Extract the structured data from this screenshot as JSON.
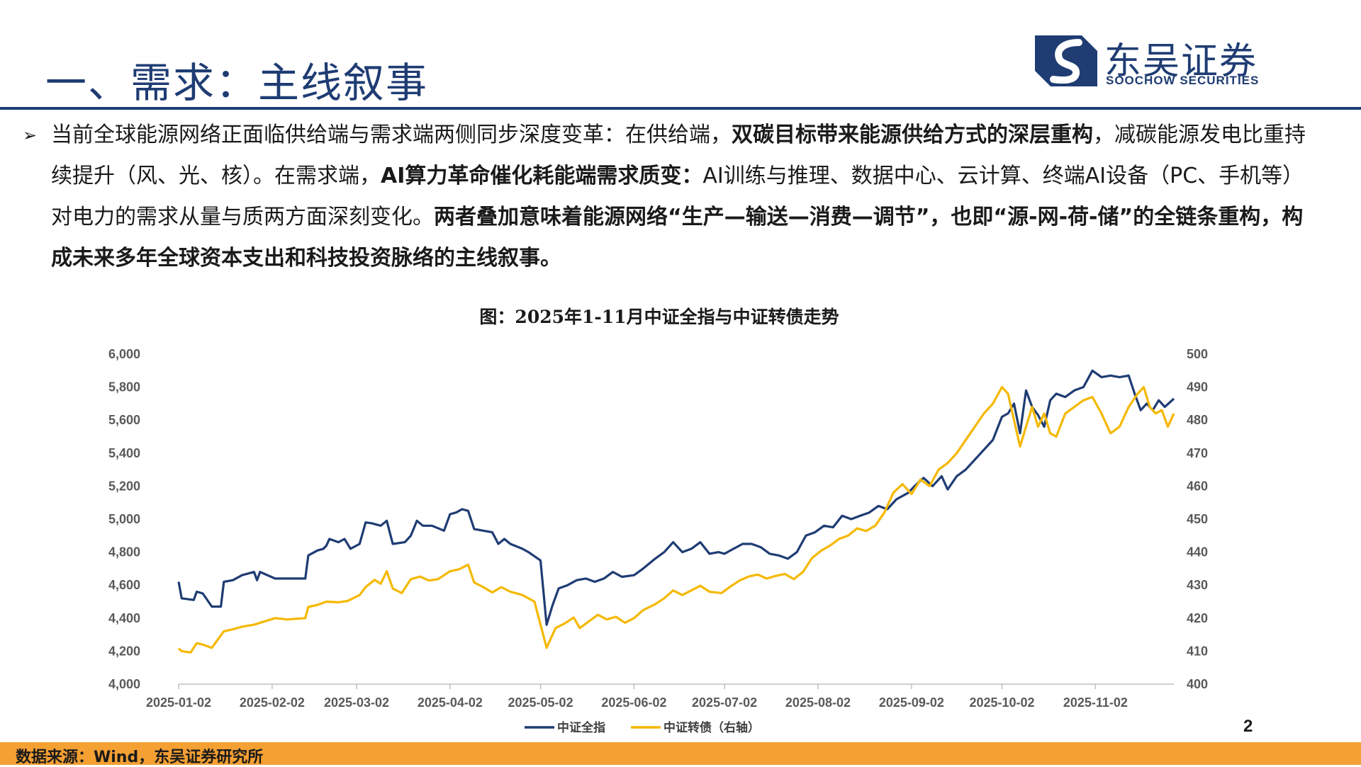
{
  "header": {
    "title": "一、需求：主线叙事",
    "logo_cn": "东吴证券",
    "logo_en": "SOOCHOW SECURITIES",
    "brand_color": "#1f3c73"
  },
  "paragraph": {
    "bullet_icon": "triangle-bullet-icon",
    "segments": [
      {
        "text": "当前全球能源网络正面临供给端与需求端两侧同步深度变革：在供给端，",
        "bold": false
      },
      {
        "text": "双碳目标带来能源供给方式的深层重构",
        "bold": true
      },
      {
        "text": "，减碳能源发电比重持续提升（风、光、核）。在需求端，",
        "bold": false
      },
      {
        "text": "AI算力革命催化耗能端需求质变：",
        "bold": true
      },
      {
        "text": "AI训练与推理、数据中心、云计算、终端AI设备（PC、手机等）对电力的需求从量与质两方面深刻变化。",
        "bold": false
      },
      {
        "text": "两者叠加意味着能源网络“生产—输送—消费—调节”，也即“源-网-荷-储”的全链条重构，构成未来多年全球资本支出和科技投资脉络的主线叙事。",
        "bold": true
      }
    ]
  },
  "chart_title": "图：2025年1-11月中证全指与中证转债走势",
  "chart_data": {
    "type": "line",
    "x_type": "date",
    "x_ticks": [
      "2025-01-02",
      "2025-02-02",
      "2025-03-02",
      "2025-04-02",
      "2025-05-02",
      "2025-06-02",
      "2025-07-02",
      "2025-08-02",
      "2025-09-02",
      "2025-10-02",
      "2025-11-02"
    ],
    "x_range": [
      "2025-01-02",
      "2025-11-28"
    ],
    "ylim_left": [
      4000,
      6000
    ],
    "yticks_left": [
      "4,000",
      "4,200",
      "4,400",
      "4,600",
      "4,800",
      "5,000",
      "5,200",
      "5,400",
      "5,600",
      "5,800",
      "6,000"
    ],
    "ylim_right": [
      400,
      500
    ],
    "yticks_right": [
      "400",
      "410",
      "420",
      "430",
      "440",
      "450",
      "460",
      "470",
      "480",
      "490",
      "500"
    ],
    "grid": false,
    "legend_position": "bottom",
    "series": [
      {
        "name": "中证全指",
        "axis": "left",
        "color": "#1f3c73",
        "points": [
          [
            "2025-01-02",
            4620
          ],
          [
            "2025-01-03",
            4520
          ],
          [
            "2025-01-07",
            4510
          ],
          [
            "2025-01-08",
            4560
          ],
          [
            "2025-01-10",
            4550
          ],
          [
            "2025-01-13",
            4470
          ],
          [
            "2025-01-16",
            4470
          ],
          [
            "2025-01-17",
            4620
          ],
          [
            "2025-01-20",
            4630
          ],
          [
            "2025-01-23",
            4660
          ],
          [
            "2025-01-27",
            4680
          ],
          [
            "2025-01-28",
            4630
          ],
          [
            "2025-01-29",
            4680
          ],
          [
            "2025-02-03",
            4640
          ],
          [
            "2025-02-13",
            4640
          ],
          [
            "2025-02-14",
            4780
          ],
          [
            "2025-02-17",
            4810
          ],
          [
            "2025-02-19",
            4820
          ],
          [
            "2025-02-20",
            4840
          ],
          [
            "2025-02-21",
            4880
          ],
          [
            "2025-02-24",
            4860
          ],
          [
            "2025-02-26",
            4880
          ],
          [
            "2025-02-28",
            4820
          ],
          [
            "2025-03-03",
            4850
          ],
          [
            "2025-03-05",
            4980
          ],
          [
            "2025-03-07",
            4975
          ],
          [
            "2025-03-10",
            4960
          ],
          [
            "2025-03-12",
            4990
          ],
          [
            "2025-03-14",
            4850
          ],
          [
            "2025-03-18",
            4860
          ],
          [
            "2025-03-20",
            4900
          ],
          [
            "2025-03-22",
            4990
          ],
          [
            "2025-03-24",
            4960
          ],
          [
            "2025-03-27",
            4960
          ],
          [
            "2025-03-31",
            4930
          ],
          [
            "2025-04-02",
            5030
          ],
          [
            "2025-04-04",
            5040
          ],
          [
            "2025-04-06",
            5060
          ],
          [
            "2025-04-08",
            5050
          ],
          [
            "2025-04-10",
            4940
          ],
          [
            "2025-04-13",
            4930
          ],
          [
            "2025-04-16",
            4920
          ],
          [
            "2025-04-18",
            4850
          ],
          [
            "2025-04-20",
            4880
          ],
          [
            "2025-04-22",
            4850
          ],
          [
            "2025-04-26",
            4820
          ],
          [
            "2025-04-28",
            4800
          ],
          [
            "2025-05-02",
            4750
          ],
          [
            "2025-05-04",
            4360
          ],
          [
            "2025-05-06",
            4480
          ],
          [
            "2025-05-08",
            4580
          ],
          [
            "2025-05-11",
            4600
          ],
          [
            "2025-05-14",
            4630
          ],
          [
            "2025-05-17",
            4640
          ],
          [
            "2025-05-20",
            4620
          ],
          [
            "2025-05-23",
            4640
          ],
          [
            "2025-05-26",
            4680
          ],
          [
            "2025-05-29",
            4650
          ],
          [
            "2025-06-02",
            4660
          ],
          [
            "2025-06-05",
            4700
          ],
          [
            "2025-06-09",
            4760
          ],
          [
            "2025-06-12",
            4800
          ],
          [
            "2025-06-15",
            4860
          ],
          [
            "2025-06-18",
            4800
          ],
          [
            "2025-06-21",
            4820
          ],
          [
            "2025-06-24",
            4860
          ],
          [
            "2025-06-27",
            4790
          ],
          [
            "2025-06-30",
            4800
          ],
          [
            "2025-07-02",
            4790
          ],
          [
            "2025-07-05",
            4820
          ],
          [
            "2025-07-08",
            4850
          ],
          [
            "2025-07-11",
            4850
          ],
          [
            "2025-07-14",
            4830
          ],
          [
            "2025-07-17",
            4790
          ],
          [
            "2025-07-20",
            4780
          ],
          [
            "2025-07-23",
            4760
          ],
          [
            "2025-07-26",
            4800
          ],
          [
            "2025-07-29",
            4900
          ],
          [
            "2025-08-01",
            4920
          ],
          [
            "2025-08-04",
            4960
          ],
          [
            "2025-08-07",
            4950
          ],
          [
            "2025-08-10",
            5020
          ],
          [
            "2025-08-13",
            5000
          ],
          [
            "2025-08-16",
            5020
          ],
          [
            "2025-08-19",
            5040
          ],
          [
            "2025-08-22",
            5080
          ],
          [
            "2025-08-25",
            5060
          ],
          [
            "2025-08-28",
            5120
          ],
          [
            "2025-09-01",
            5160
          ],
          [
            "2025-09-03",
            5200
          ],
          [
            "2025-09-06",
            5250
          ],
          [
            "2025-09-09",
            5200
          ],
          [
            "2025-09-12",
            5260
          ],
          [
            "2025-09-14",
            5180
          ],
          [
            "2025-09-17",
            5260
          ],
          [
            "2025-09-20",
            5300
          ],
          [
            "2025-09-23",
            5360
          ],
          [
            "2025-09-26",
            5420
          ],
          [
            "2025-09-29",
            5480
          ],
          [
            "2025-10-02",
            5620
          ],
          [
            "2025-10-04",
            5640
          ],
          [
            "2025-10-06",
            5700
          ],
          [
            "2025-10-08",
            5520
          ],
          [
            "2025-10-10",
            5780
          ],
          [
            "2025-10-12",
            5680
          ],
          [
            "2025-10-14",
            5630
          ],
          [
            "2025-10-16",
            5560
          ],
          [
            "2025-10-18",
            5720
          ],
          [
            "2025-10-20",
            5760
          ],
          [
            "2025-10-23",
            5740
          ],
          [
            "2025-10-26",
            5780
          ],
          [
            "2025-10-29",
            5800
          ],
          [
            "2025-11-01",
            5900
          ],
          [
            "2025-11-04",
            5860
          ],
          [
            "2025-11-07",
            5870
          ],
          [
            "2025-11-10",
            5860
          ],
          [
            "2025-11-13",
            5870
          ],
          [
            "2025-11-15",
            5760
          ],
          [
            "2025-11-17",
            5660
          ],
          [
            "2025-11-19",
            5700
          ],
          [
            "2025-11-21",
            5660
          ],
          [
            "2025-11-23",
            5720
          ],
          [
            "2025-11-25",
            5680
          ],
          [
            "2025-11-28",
            5730
          ]
        ]
      },
      {
        "name": "中证转债（右轴）",
        "axis": "right",
        "color": "#f5b800",
        "points": [
          [
            "2025-01-02",
            410.8
          ],
          [
            "2025-01-03",
            410.0
          ],
          [
            "2025-01-06",
            409.6
          ],
          [
            "2025-01-08",
            412.4
          ],
          [
            "2025-01-10",
            412.0
          ],
          [
            "2025-01-13",
            411.0
          ],
          [
            "2025-01-17",
            416.0
          ],
          [
            "2025-01-20",
            416.6
          ],
          [
            "2025-01-23",
            417.4
          ],
          [
            "2025-01-27",
            418.0
          ],
          [
            "2025-01-29",
            418.6
          ],
          [
            "2025-02-03",
            420.0
          ],
          [
            "2025-02-07",
            419.6
          ],
          [
            "2025-02-13",
            420.0
          ],
          [
            "2025-02-14",
            423.4
          ],
          [
            "2025-02-17",
            424.0
          ],
          [
            "2025-02-20",
            425.0
          ],
          [
            "2025-02-24",
            424.8
          ],
          [
            "2025-02-27",
            425.2
          ],
          [
            "2025-03-03",
            427.0
          ],
          [
            "2025-03-05",
            429.4
          ],
          [
            "2025-03-08",
            431.6
          ],
          [
            "2025-03-10",
            430.4
          ],
          [
            "2025-03-12",
            434.2
          ],
          [
            "2025-03-14",
            429.0
          ],
          [
            "2025-03-17",
            427.6
          ],
          [
            "2025-03-20",
            431.8
          ],
          [
            "2025-03-23",
            432.6
          ],
          [
            "2025-03-26",
            431.4
          ],
          [
            "2025-03-29",
            431.8
          ],
          [
            "2025-04-02",
            434.2
          ],
          [
            "2025-04-05",
            434.8
          ],
          [
            "2025-04-08",
            436.2
          ],
          [
            "2025-04-10",
            430.8
          ],
          [
            "2025-04-13",
            429.4
          ],
          [
            "2025-04-16",
            427.8
          ],
          [
            "2025-04-19",
            429.4
          ],
          [
            "2025-04-22",
            428.0
          ],
          [
            "2025-04-26",
            427.0
          ],
          [
            "2025-04-30",
            425.0
          ],
          [
            "2025-05-04",
            411.0
          ],
          [
            "2025-05-07",
            417.0
          ],
          [
            "2025-05-10",
            418.4
          ],
          [
            "2025-05-13",
            420.2
          ],
          [
            "2025-05-15",
            417.0
          ],
          [
            "2025-05-18",
            419.0
          ],
          [
            "2025-05-21",
            421.0
          ],
          [
            "2025-05-24",
            419.6
          ],
          [
            "2025-05-27",
            420.4
          ],
          [
            "2025-05-30",
            418.6
          ],
          [
            "2025-06-02",
            420.0
          ],
          [
            "2025-06-05",
            422.4
          ],
          [
            "2025-06-09",
            424.2
          ],
          [
            "2025-06-12",
            426.0
          ],
          [
            "2025-06-15",
            428.4
          ],
          [
            "2025-06-18",
            427.0
          ],
          [
            "2025-06-21",
            428.4
          ],
          [
            "2025-06-24",
            429.8
          ],
          [
            "2025-06-27",
            428.0
          ],
          [
            "2025-07-01",
            427.6
          ],
          [
            "2025-07-04",
            429.6
          ],
          [
            "2025-07-07",
            431.4
          ],
          [
            "2025-07-10",
            432.6
          ],
          [
            "2025-07-13",
            433.2
          ],
          [
            "2025-07-16",
            432.0
          ],
          [
            "2025-07-19",
            432.8
          ],
          [
            "2025-07-22",
            433.4
          ],
          [
            "2025-07-25",
            431.8
          ],
          [
            "2025-07-28",
            434.0
          ],
          [
            "2025-07-31",
            438.2
          ],
          [
            "2025-08-03",
            440.4
          ],
          [
            "2025-08-06",
            442.0
          ],
          [
            "2025-08-09",
            444.0
          ],
          [
            "2025-08-12",
            445.0
          ],
          [
            "2025-08-15",
            447.2
          ],
          [
            "2025-08-18",
            446.4
          ],
          [
            "2025-08-21",
            448.0
          ],
          [
            "2025-08-24",
            452.0
          ],
          [
            "2025-08-27",
            458.0
          ],
          [
            "2025-08-30",
            460.6
          ],
          [
            "2025-09-02",
            457.6
          ],
          [
            "2025-09-05",
            462.0
          ],
          [
            "2025-09-08",
            460.0
          ],
          [
            "2025-09-11",
            465.0
          ],
          [
            "2025-09-14",
            467.0
          ],
          [
            "2025-09-17",
            470.0
          ],
          [
            "2025-09-20",
            474.0
          ],
          [
            "2025-09-23",
            478.0
          ],
          [
            "2025-09-26",
            482.0
          ],
          [
            "2025-09-29",
            485.0
          ],
          [
            "2025-10-02",
            490.0
          ],
          [
            "2025-10-04",
            488.0
          ],
          [
            "2025-10-06",
            480.0
          ],
          [
            "2025-10-08",
            472.0
          ],
          [
            "2025-10-10",
            478.0
          ],
          [
            "2025-10-12",
            484.0
          ],
          [
            "2025-10-14",
            478.0
          ],
          [
            "2025-10-16",
            482.0
          ],
          [
            "2025-10-18",
            476.0
          ],
          [
            "2025-10-20",
            475.0
          ],
          [
            "2025-10-23",
            482.0
          ],
          [
            "2025-10-26",
            484.0
          ],
          [
            "2025-10-29",
            486.0
          ],
          [
            "2025-11-01",
            487.0
          ],
          [
            "2025-11-04",
            482.0
          ],
          [
            "2025-11-07",
            476.0
          ],
          [
            "2025-11-10",
            478.0
          ],
          [
            "2025-11-13",
            484.0
          ],
          [
            "2025-11-16",
            488.0
          ],
          [
            "2025-11-18",
            490.0
          ],
          [
            "2025-11-20",
            484.0
          ],
          [
            "2025-11-22",
            482.0
          ],
          [
            "2025-11-24",
            483.0
          ],
          [
            "2025-11-26",
            478.0
          ],
          [
            "2025-11-28",
            482.0
          ]
        ]
      }
    ]
  },
  "page_number": "2",
  "footer": {
    "source_text": "数据来源：Wind，东吴证券研究所",
    "bar_color": "#f5a033"
  }
}
